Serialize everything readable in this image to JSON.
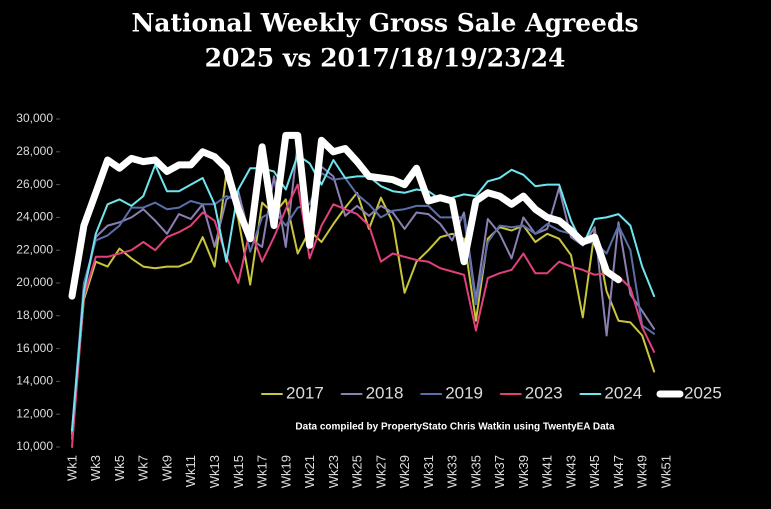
{
  "chart_data": {
    "type": "line",
    "title": "National Weekly Gross Sale Agreeds",
    "subtitle": "2025 vs 2017/18/19/23/24",
    "annotation": "Data compiled by PropertyStato Chris Watkin using TwentyEA Data",
    "legend": "lower right",
    "categories": [
      "Wk1",
      null,
      "Wk3",
      null,
      "Wk5",
      null,
      "Wk7",
      null,
      "Wk9",
      null,
      "Wk11",
      null,
      "Wk13",
      null,
      "Wk15",
      null,
      "Wk17",
      null,
      "Wk19",
      null,
      "Wk21",
      null,
      "Wk23",
      null,
      "Wk25",
      null,
      "Wk27",
      null,
      "Wk29",
      null,
      "Wk31",
      null,
      "Wk33",
      null,
      "Wk35",
      null,
      "Wk37",
      null,
      "Wk39",
      null,
      "Wk41",
      null,
      "Wk43",
      null,
      "Wk45",
      null,
      "Wk47",
      null,
      "Wk49",
      null,
      "Wk51"
    ],
    "ylim": [
      10000,
      30000
    ],
    "yticks": [
      {
        "value": 10000,
        "label": "10,000"
      },
      {
        "value": 12000,
        "label": "12,000"
      },
      {
        "value": 14000,
        "label": "14,000"
      },
      {
        "value": 16000,
        "label": "16,000"
      },
      {
        "value": 18000,
        "label": "18,000"
      },
      {
        "value": 20000,
        "label": "20,000"
      },
      {
        "value": 22000,
        "label": "22,000"
      },
      {
        "value": 24000,
        "label": "24,000"
      },
      {
        "value": 26000,
        "label": "26,000"
      },
      {
        "value": 28000,
        "label": "28,000"
      },
      {
        "value": 30000,
        "label": "30,000"
      }
    ],
    "series": [
      {
        "name": "2017",
        "color": "#c9c63c",
        "width": 2,
        "values": [
          10800,
          19000,
          21300,
          21000,
          22100,
          21500,
          21000,
          20900,
          21000,
          21000,
          21300,
          22800,
          21000,
          26700,
          23900,
          19900,
          24900,
          24200,
          25100,
          21800,
          23200,
          22500,
          23600,
          24600,
          25500,
          23300,
          25200,
          23700,
          19400,
          21300,
          22000,
          22800,
          23000,
          22700,
          17700,
          22700,
          23400,
          23200,
          23500,
          22500,
          23000,
          22700,
          21700,
          17900,
          23200,
          19500,
          17700,
          17600,
          16800,
          14600,
          null
        ]
      },
      {
        "name": "2018",
        "color": "#8b7fb3",
        "width": 2,
        "values": [
          10500,
          19500,
          22800,
          23500,
          23700,
          24000,
          24500,
          23800,
          23000,
          24200,
          23900,
          24800,
          22200,
          25100,
          25600,
          22700,
          22200,
          26500,
          22200,
          28500,
          22600,
          27100,
          26500,
          24100,
          24700,
          24100,
          24700,
          24300,
          23300,
          24300,
          24200,
          23600,
          22600,
          24300,
          19000,
          23900,
          23000,
          21500,
          24000,
          23000,
          23300,
          25800,
          22800,
          22300,
          23400,
          16800,
          23700,
          19300,
          18300,
          17200,
          null
        ]
      },
      {
        "name": "2019",
        "color": "#5a6fa8",
        "width": 2,
        "values": [
          11000,
          20000,
          22600,
          22900,
          23500,
          24600,
          24600,
          24900,
          24500,
          24600,
          25000,
          24800,
          24800,
          25300,
          25000,
          21900,
          24000,
          24400,
          23500,
          24600,
          24800,
          26700,
          26300,
          26400,
          25400,
          24800,
          24000,
          24400,
          24500,
          24700,
          24700,
          24000,
          24000,
          24000,
          18700,
          22500,
          23500,
          23400,
          23500,
          23000,
          23600,
          23200,
          23000,
          22400,
          22500,
          21800,
          23500,
          22000,
          17400,
          16900,
          null
        ]
      },
      {
        "name": "2023",
        "color": "#e2407c",
        "width": 2,
        "values": [
          10000,
          19200,
          21600,
          21600,
          21800,
          22000,
          22500,
          22000,
          22800,
          23100,
          23500,
          24300,
          23800,
          21600,
          20000,
          23300,
          21300,
          22800,
          24500,
          26000,
          21500,
          23500,
          24800,
          24500,
          24200,
          23500,
          21300,
          21800,
          21600,
          21400,
          21300,
          20900,
          20700,
          20500,
          17100,
          20300,
          20600,
          20800,
          21800,
          20600,
          20600,
          21300,
          21000,
          20800,
          20500,
          20600,
          20400,
          19700,
          17300,
          15800,
          null
        ]
      },
      {
        "name": "2024",
        "color": "#6fe6ef",
        "width": 2,
        "values": [
          11000,
          19500,
          23000,
          24800,
          25100,
          24700,
          25300,
          27200,
          25600,
          25600,
          26000,
          26400,
          24800,
          21300,
          25700,
          27000,
          27000,
          26800,
          25700,
          27800,
          27300,
          26000,
          27500,
          26400,
          26500,
          26500,
          25900,
          25600,
          25500,
          25700,
          25600,
          25100,
          25200,
          25400,
          25300,
          26200,
          26400,
          26900,
          26600,
          25900,
          26000,
          26000,
          23800,
          22300,
          23900,
          24000,
          24200,
          23500,
          21000,
          19200,
          null
        ]
      },
      {
        "name": "2025",
        "color": "#ffffff",
        "width": 7,
        "values": [
          19200,
          23500,
          25500,
          27500,
          27000,
          27600,
          27400,
          27500,
          26800,
          27200,
          27200,
          28000,
          27700,
          27000,
          24500,
          22700,
          28300,
          23500,
          29000,
          29000,
          22300,
          28700,
          28000,
          28200,
          27400,
          26500,
          26400,
          26300,
          26000,
          27000,
          25000,
          25200,
          25000,
          21300,
          25000,
          25500,
          25300,
          24800,
          25300,
          24500,
          24000,
          23800,
          23200,
          22500,
          22800,
          20700,
          20200,
          null,
          null,
          null,
          null
        ]
      }
    ]
  }
}
